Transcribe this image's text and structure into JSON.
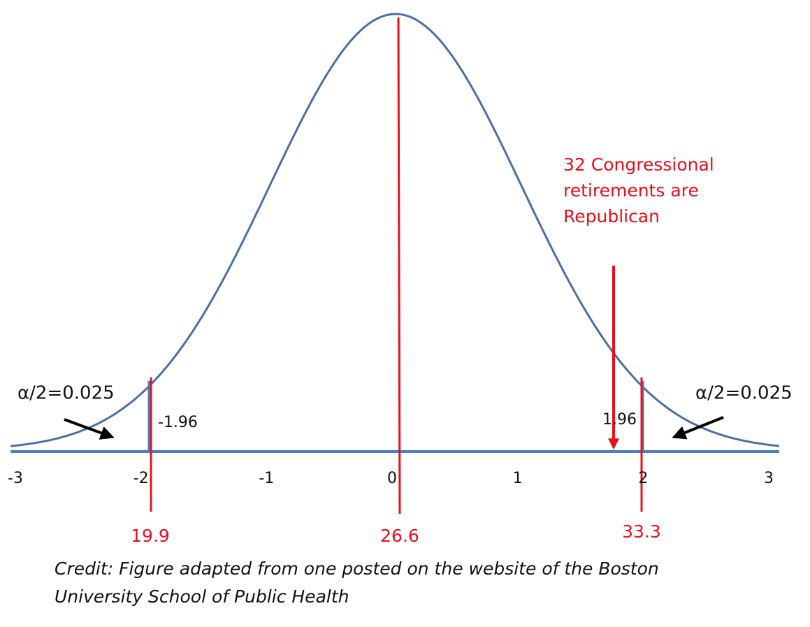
{
  "axis": {
    "ticks": [
      -3,
      -2,
      -1,
      0,
      1,
      2,
      3
    ]
  },
  "critical": {
    "left": {
      "value": -1.96,
      "label": "-1.96",
      "tail": "α/2=0.025",
      "scale_value": 19.9
    },
    "right": {
      "value": 1.96,
      "label": "1.96",
      "tail": "α/2=0.025",
      "scale_value": 33.3
    }
  },
  "center": {
    "scale_value": 26.6
  },
  "annotation": {
    "lines": [
      "32 Congressional",
      "retirements are",
      "Republican"
    ]
  },
  "credit": {
    "lines": [
      "Credit: Figure adapted from one posted on the website of the Boston",
      "University School of Public Health"
    ]
  }
}
